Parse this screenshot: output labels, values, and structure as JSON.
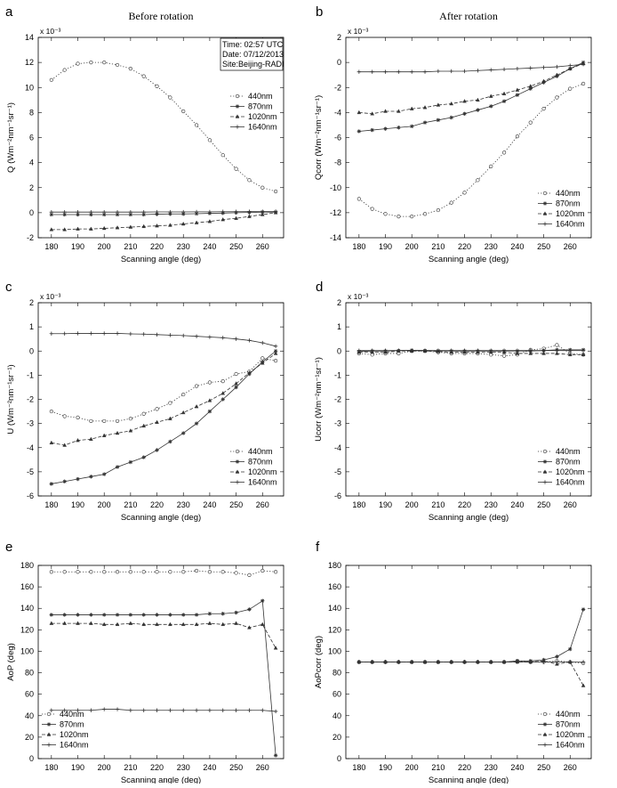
{
  "colors": {
    "line": "#333333",
    "marker": "#333333",
    "frame": "#000000"
  },
  "legend_labels": [
    "440nm",
    "870nm",
    "1020nm",
    "1640nm"
  ],
  "annotation_lines": [
    "Time: 02:57 UTC",
    "Date: 07/12/2013",
    "Site:Beijing-RADI"
  ],
  "chart_data": [
    {
      "panel": "a",
      "type": "line",
      "title": "Before rotation",
      "xlabel": "Scanning angle (deg)",
      "ylabel": "Q (Wm⁻²nm⁻¹sr⁻¹)",
      "exponent": "x 10⁻³",
      "xlim": [
        175,
        268
      ],
      "ylim": [
        -2,
        14
      ],
      "xticks": [
        180,
        190,
        200,
        210,
        220,
        230,
        240,
        250,
        260
      ],
      "yticks": [
        -2,
        0,
        2,
        4,
        6,
        8,
        10,
        12,
        14
      ],
      "legend": "right-middle",
      "annotation": true,
      "x": [
        180,
        185,
        190,
        195,
        200,
        205,
        210,
        215,
        220,
        225,
        230,
        235,
        240,
        245,
        250,
        255,
        260,
        265
      ],
      "series": [
        {
          "name": "440nm",
          "values": [
            10.6,
            11.4,
            11.9,
            12.0,
            12.0,
            11.8,
            11.5,
            10.9,
            10.1,
            9.2,
            8.1,
            7.0,
            5.8,
            4.6,
            3.5,
            2.6,
            2.0,
            1.7
          ]
        },
        {
          "name": "870nm",
          "values": [
            -0.15,
            -0.15,
            -0.15,
            -0.15,
            -0.15,
            -0.15,
            -0.15,
            -0.15,
            -0.12,
            -0.1,
            -0.1,
            -0.08,
            -0.05,
            -0.03,
            0.0,
            0.02,
            0.05,
            0.05
          ]
        },
        {
          "name": "1020nm",
          "values": [
            -1.35,
            -1.35,
            -1.3,
            -1.3,
            -1.25,
            -1.2,
            -1.15,
            -1.1,
            -1.05,
            -1.0,
            -0.9,
            -0.8,
            -0.7,
            -0.55,
            -0.45,
            -0.3,
            -0.15,
            0.0
          ]
        },
        {
          "name": "1640nm",
          "values": [
            0.05,
            0.05,
            0.05,
            0.05,
            0.05,
            0.05,
            0.05,
            0.05,
            0.06,
            0.06,
            0.06,
            0.07,
            0.07,
            0.08,
            0.08,
            0.09,
            0.09,
            0.1
          ]
        }
      ]
    },
    {
      "panel": "b",
      "type": "line",
      "title": "After rotation",
      "xlabel": "Scanning angle (deg)",
      "ylabel": "Qcorr (Wm⁻²nm⁻¹sr⁻¹)",
      "exponent": "x 10⁻³",
      "xlim": [
        175,
        268
      ],
      "ylim": [
        -14,
        2
      ],
      "xticks": [
        180,
        190,
        200,
        210,
        220,
        230,
        240,
        250,
        260
      ],
      "yticks": [
        -14,
        -12,
        -10,
        -8,
        -6,
        -4,
        -2,
        0,
        2
      ],
      "legend": "bottom-right",
      "annotation": false,
      "x": [
        180,
        185,
        190,
        195,
        200,
        205,
        210,
        215,
        220,
        225,
        230,
        235,
        240,
        245,
        250,
        255,
        260,
        265
      ],
      "series": [
        {
          "name": "440nm",
          "values": [
            -10.9,
            -11.7,
            -12.1,
            -12.3,
            -12.3,
            -12.1,
            -11.8,
            -11.2,
            -10.4,
            -9.4,
            -8.3,
            -7.2,
            -5.9,
            -4.8,
            -3.7,
            -2.8,
            -2.1,
            -1.7
          ]
        },
        {
          "name": "870nm",
          "values": [
            -5.5,
            -5.4,
            -5.3,
            -5.2,
            -5.1,
            -4.8,
            -4.6,
            -4.4,
            -4.1,
            -3.8,
            -3.5,
            -3.1,
            -2.6,
            -2.1,
            -1.6,
            -1.1,
            -0.5,
            0.0
          ]
        },
        {
          "name": "1020nm",
          "values": [
            -4.0,
            -4.1,
            -3.9,
            -3.9,
            -3.7,
            -3.6,
            -3.4,
            -3.3,
            -3.1,
            -3.0,
            -2.7,
            -2.5,
            -2.2,
            -1.9,
            -1.5,
            -1.0,
            -0.5,
            -0.1
          ]
        },
        {
          "name": "1640nm",
          "values": [
            -0.75,
            -0.75,
            -0.75,
            -0.75,
            -0.75,
            -0.75,
            -0.7,
            -0.7,
            -0.7,
            -0.65,
            -0.6,
            -0.55,
            -0.5,
            -0.45,
            -0.4,
            -0.35,
            -0.25,
            -0.15
          ]
        }
      ]
    },
    {
      "panel": "c",
      "type": "line",
      "title": "",
      "xlabel": "Scanning angle (deg)",
      "ylabel": "U (Wm⁻²nm⁻¹sr⁻¹)",
      "exponent": "x 10⁻³",
      "xlim": [
        175,
        268
      ],
      "ylim": [
        -6,
        2
      ],
      "xticks": [
        180,
        190,
        200,
        210,
        220,
        230,
        240,
        250,
        260
      ],
      "yticks": [
        -6,
        -5,
        -4,
        -3,
        -2,
        -1,
        0,
        1,
        2
      ],
      "legend": "bottom-right",
      "annotation": false,
      "x": [
        180,
        185,
        190,
        195,
        200,
        205,
        210,
        215,
        220,
        225,
        230,
        235,
        240,
        245,
        250,
        255,
        260,
        265
      ],
      "series": [
        {
          "name": "440nm",
          "values": [
            -2.5,
            -2.7,
            -2.75,
            -2.9,
            -2.9,
            -2.9,
            -2.8,
            -2.6,
            -2.4,
            -2.15,
            -1.8,
            -1.45,
            -1.3,
            -1.25,
            -0.95,
            -0.85,
            -0.3,
            -0.4
          ]
        },
        {
          "name": "870nm",
          "values": [
            -5.5,
            -5.4,
            -5.3,
            -5.2,
            -5.1,
            -4.8,
            -4.6,
            -4.4,
            -4.1,
            -3.75,
            -3.4,
            -3.0,
            -2.5,
            -2.0,
            -1.5,
            -0.95,
            -0.45,
            0.0
          ]
        },
        {
          "name": "1020nm",
          "values": [
            -3.8,
            -3.9,
            -3.7,
            -3.65,
            -3.5,
            -3.4,
            -3.3,
            -3.1,
            -2.95,
            -2.8,
            -2.55,
            -2.3,
            -2.05,
            -1.75,
            -1.35,
            -0.9,
            -0.5,
            -0.1
          ]
        },
        {
          "name": "1640nm",
          "values": [
            0.72,
            0.72,
            0.73,
            0.73,
            0.73,
            0.73,
            0.71,
            0.7,
            0.68,
            0.66,
            0.64,
            0.61,
            0.58,
            0.55,
            0.5,
            0.44,
            0.34,
            0.2
          ]
        }
      ]
    },
    {
      "panel": "d",
      "type": "line",
      "title": "",
      "xlabel": "Scanning angle (deg)",
      "ylabel": "Ucorr (Wm⁻²nm⁻¹sr⁻¹)",
      "exponent": "x 10⁻³",
      "xlim": [
        175,
        268
      ],
      "ylim": [
        -6,
        2
      ],
      "xticks": [
        180,
        190,
        200,
        210,
        220,
        230,
        240,
        250,
        260
      ],
      "yticks": [
        -6,
        -5,
        -4,
        -3,
        -2,
        -1,
        0,
        1,
        2
      ],
      "legend": "bottom-right",
      "annotation": false,
      "x": [
        180,
        185,
        190,
        195,
        200,
        205,
        210,
        215,
        220,
        225,
        230,
        235,
        240,
        245,
        250,
        255,
        260,
        265
      ],
      "series": [
        {
          "name": "440nm",
          "values": [
            -0.1,
            -0.15,
            -0.1,
            -0.1,
            0.0,
            0.0,
            -0.05,
            -0.1,
            -0.1,
            -0.1,
            -0.15,
            -0.2,
            -0.15,
            0.05,
            0.1,
            0.25,
            -0.1,
            -0.15
          ]
        },
        {
          "name": "870nm",
          "values": [
            -0.02,
            0.0,
            0.0,
            0.02,
            0.03,
            0.02,
            0.01,
            0.0,
            0.0,
            0.0,
            0.0,
            0.0,
            0.0,
            0.0,
            0.02,
            0.05,
            0.05,
            0.05
          ]
        },
        {
          "name": "1020nm",
          "values": [
            -0.05,
            -0.05,
            -0.05,
            0.0,
            0.0,
            0.0,
            -0.02,
            -0.05,
            -0.05,
            -0.05,
            -0.05,
            -0.05,
            -0.1,
            -0.1,
            -0.1,
            -0.1,
            -0.15,
            -0.15
          ]
        },
        {
          "name": "1640nm",
          "values": [
            0.02,
            0.02,
            0.02,
            0.02,
            0.02,
            0.02,
            0.02,
            0.02,
            0.02,
            0.02,
            0.02,
            0.02,
            0.02,
            0.02,
            0.02,
            0.02,
            0.02,
            0.02
          ]
        }
      ]
    },
    {
      "panel": "e",
      "type": "line",
      "title": "",
      "xlabel": "Scanning angle (deg)",
      "ylabel": "AoP (deg)",
      "exponent": "",
      "xlim": [
        175,
        268
      ],
      "ylim": [
        0,
        180
      ],
      "xticks": [
        180,
        190,
        200,
        210,
        220,
        230,
        240,
        250,
        260
      ],
      "yticks": [
        0,
        20,
        40,
        60,
        80,
        100,
        120,
        140,
        160,
        180
      ],
      "legend": "bottom-left",
      "annotation": false,
      "x": [
        180,
        185,
        190,
        195,
        200,
        205,
        210,
        215,
        220,
        225,
        230,
        235,
        240,
        245,
        250,
        255,
        260,
        265
      ],
      "series": [
        {
          "name": "440nm",
          "values": [
            174,
            174,
            174,
            174,
            174,
            174,
            174,
            174,
            174,
            174,
            174,
            175,
            174,
            174,
            173,
            171,
            175,
            174
          ]
        },
        {
          "name": "870nm",
          "values": [
            134,
            134,
            134,
            134,
            134,
            134,
            134,
            134,
            134,
            134,
            134,
            134,
            135,
            135,
            136,
            139,
            147,
            3
          ]
        },
        {
          "name": "1020nm",
          "values": [
            126,
            126,
            126,
            126,
            125,
            125,
            126,
            125,
            125,
            125,
            125,
            125,
            126,
            125,
            126,
            122,
            125,
            103
          ]
        },
        {
          "name": "1640nm",
          "values": [
            45,
            45,
            45,
            45,
            46,
            46,
            45,
            45,
            45,
            45,
            45,
            45,
            45,
            45,
            45,
            45,
            45,
            44
          ]
        }
      ]
    },
    {
      "panel": "f",
      "type": "line",
      "title": "",
      "xlabel": "Scanning angle (deg)",
      "ylabel": "AoPcorr (deg)",
      "exponent": "",
      "xlim": [
        175,
        268
      ],
      "ylim": [
        0,
        180
      ],
      "xticks": [
        180,
        190,
        200,
        210,
        220,
        230,
        240,
        250,
        260
      ],
      "yticks": [
        0,
        20,
        40,
        60,
        80,
        100,
        120,
        140,
        160,
        180
      ],
      "legend": "bottom-right",
      "annotation": false,
      "x": [
        180,
        185,
        190,
        195,
        200,
        205,
        210,
        215,
        220,
        225,
        230,
        235,
        240,
        245,
        250,
        255,
        260,
        265
      ],
      "series": [
        {
          "name": "440nm",
          "values": [
            90,
            90,
            90,
            90,
            90,
            90,
            90,
            90,
            90,
            90,
            90,
            90,
            91,
            90,
            90,
            91,
            90,
            89
          ]
        },
        {
          "name": "870nm",
          "values": [
            90,
            90,
            90,
            90,
            90,
            90,
            90,
            90,
            90,
            90,
            90,
            90,
            91,
            91,
            92,
            95,
            102,
            139
          ]
        },
        {
          "name": "1020nm",
          "values": [
            90,
            90,
            90,
            90,
            90,
            90,
            90,
            90,
            90,
            90,
            90,
            90,
            90,
            90,
            91,
            88,
            90,
            68
          ]
        },
        {
          "name": "1640nm",
          "values": [
            90,
            90,
            90,
            90,
            90,
            90,
            90,
            90,
            90,
            90,
            90,
            90,
            90,
            90,
            90,
            90,
            90,
            90
          ]
        }
      ]
    }
  ]
}
